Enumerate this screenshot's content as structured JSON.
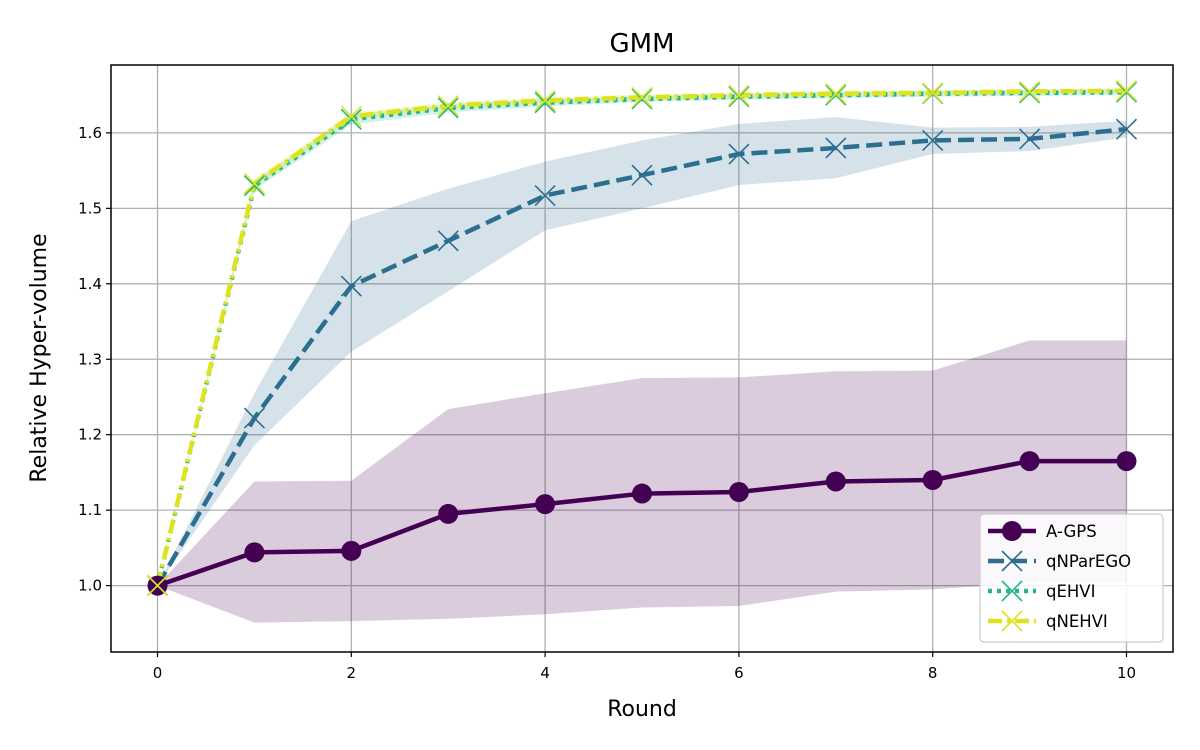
{
  "chart_data": {
    "type": "line",
    "title": "GMM",
    "xlabel": "Round",
    "ylabel": "Relative Hyper-volume",
    "x": [
      0,
      1,
      2,
      3,
      4,
      5,
      6,
      7,
      8,
      9,
      10
    ],
    "xlim": [
      -0.48,
      10.48
    ],
    "ylim": [
      0.912,
      1.69
    ],
    "xticks": [
      0,
      2,
      4,
      6,
      8,
      10
    ],
    "yticks": [
      1.0,
      1.1,
      1.2,
      1.3,
      1.4,
      1.5,
      1.6
    ],
    "grid": true,
    "legend_position": "lower-right",
    "series": [
      {
        "name": "A-GPS",
        "color": "#440154",
        "linestyle": "solid",
        "marker": "circle",
        "values": [
          1.0,
          1.044,
          1.046,
          1.095,
          1.108,
          1.122,
          1.124,
          1.138,
          1.14,
          1.165,
          1.165
        ],
        "band_upper": [
          1.0,
          1.138,
          1.139,
          1.234,
          1.255,
          1.275,
          1.276,
          1.284,
          1.285,
          1.325,
          1.325
        ],
        "band_lower": [
          1.0,
          0.951,
          0.953,
          0.956,
          0.962,
          0.971,
          0.973,
          0.992,
          0.995,
          1.004,
          1.005
        ]
      },
      {
        "name": "qNParEGO",
        "color": "#2c6e8f",
        "linestyle": "dashed",
        "marker": "x",
        "values": [
          1.0,
          1.222,
          1.397,
          1.457,
          1.517,
          1.544,
          1.572,
          1.58,
          1.59,
          1.592,
          1.605
        ],
        "band_upper": [
          1.0,
          1.255,
          1.483,
          1.526,
          1.562,
          1.59,
          1.612,
          1.621,
          1.607,
          1.608,
          1.616
        ],
        "band_lower": [
          1.0,
          1.186,
          1.31,
          1.39,
          1.471,
          1.5,
          1.531,
          1.54,
          1.572,
          1.576,
          1.594
        ]
      },
      {
        "name": "qEHVI",
        "color": "#21b78a",
        "linestyle": "dotted",
        "marker": "x",
        "values": [
          1.0,
          1.53,
          1.618,
          1.633,
          1.64,
          1.645,
          1.648,
          1.65,
          1.652,
          1.653,
          1.654
        ],
        "band_upper": [
          1.0,
          1.536,
          1.624,
          1.638,
          1.645,
          1.649,
          1.652,
          1.654,
          1.656,
          1.657,
          1.658
        ],
        "band_lower": [
          1.0,
          1.524,
          1.611,
          1.627,
          1.635,
          1.641,
          1.644,
          1.646,
          1.648,
          1.649,
          1.65
        ]
      },
      {
        "name": "qNEHVI",
        "color": "#dde31c",
        "linestyle": "dashdot",
        "marker": "x",
        "values": [
          1.0,
          1.533,
          1.622,
          1.636,
          1.643,
          1.647,
          1.65,
          1.652,
          1.653,
          1.655,
          1.656
        ],
        "band_upper": [
          1.0,
          1.539,
          1.627,
          1.641,
          1.647,
          1.651,
          1.654,
          1.656,
          1.657,
          1.658,
          1.659
        ],
        "band_lower": [
          1.0,
          1.527,
          1.617,
          1.631,
          1.639,
          1.643,
          1.646,
          1.648,
          1.649,
          1.652,
          1.653
        ]
      }
    ]
  }
}
